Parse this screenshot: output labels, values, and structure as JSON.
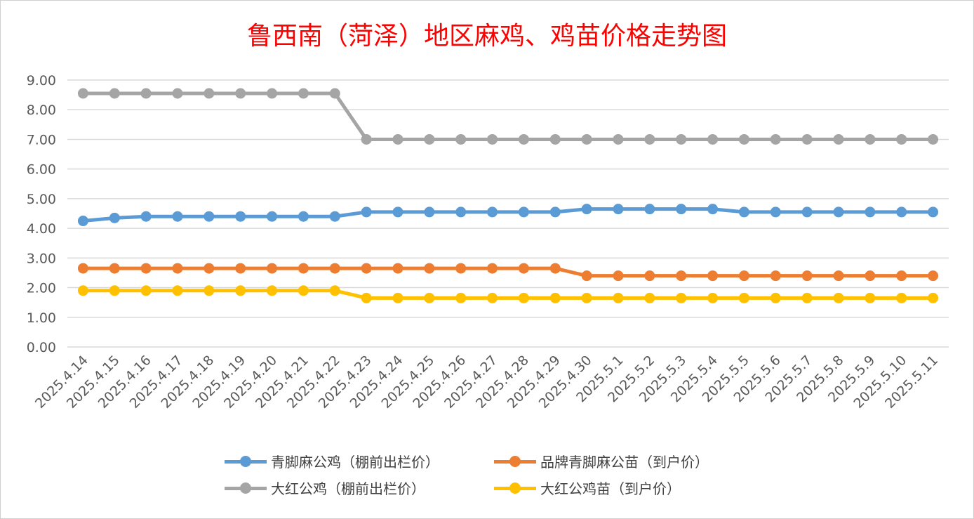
{
  "chart_data": {
    "type": "line",
    "title": "鲁西南（菏泽）地区麻鸡、鸡苗价格走势图",
    "xlabel": "",
    "ylabel": "",
    "ylim": [
      0,
      9
    ],
    "yticks": [
      "0.00",
      "1.00",
      "2.00",
      "3.00",
      "4.00",
      "5.00",
      "6.00",
      "7.00",
      "8.00",
      "9.00"
    ],
    "grid": true,
    "legend_position": "bottom",
    "x": [
      "2025.4.14",
      "2025.4.15",
      "2025.4.16",
      "2025.4.17",
      "2025.4.18",
      "2025.4.19",
      "2025.4.20",
      "2025.4.21",
      "2025.4.22",
      "2025.4.23",
      "2025.4.24",
      "2025.4.25",
      "2025.4.26",
      "2025.4.27",
      "2025.4.28",
      "2025.4.29",
      "2025.4.30",
      "2025.5.1",
      "2025.5.2",
      "2025.5.3",
      "2025.5.4",
      "2025.5.5",
      "2025.5.6",
      "2025.5.7",
      "2025.5.8",
      "2025.5.9",
      "2025.5.10",
      "2025.5.11"
    ],
    "series": [
      {
        "name": "青脚麻公鸡（棚前出栏价）",
        "color": "#5b9bd5",
        "values": [
          4.25,
          4.35,
          4.4,
          4.4,
          4.4,
          4.4,
          4.4,
          4.4,
          4.4,
          4.55,
          4.55,
          4.55,
          4.55,
          4.55,
          4.55,
          4.55,
          4.65,
          4.65,
          4.65,
          4.65,
          4.65,
          4.55,
          4.55,
          4.55,
          4.55,
          4.55,
          4.55,
          4.55
        ]
      },
      {
        "name": "品牌青脚麻公苗（到户价）",
        "color": "#ed7d31",
        "values": [
          2.65,
          2.65,
          2.65,
          2.65,
          2.65,
          2.65,
          2.65,
          2.65,
          2.65,
          2.65,
          2.65,
          2.65,
          2.65,
          2.65,
          2.65,
          2.65,
          2.4,
          2.4,
          2.4,
          2.4,
          2.4,
          2.4,
          2.4,
          2.4,
          2.4,
          2.4,
          2.4,
          2.4
        ]
      },
      {
        "name": "大红公鸡（棚前出栏价）",
        "color": "#a5a5a5",
        "values": [
          8.55,
          8.55,
          8.55,
          8.55,
          8.55,
          8.55,
          8.55,
          8.55,
          8.55,
          7,
          7,
          7,
          7,
          7,
          7,
          7,
          7,
          7,
          7,
          7,
          7,
          7,
          7,
          7,
          7,
          7,
          7,
          7
        ]
      },
      {
        "name": "大红公鸡苗（到户价）",
        "color": "#ffc000",
        "values": [
          1.9,
          1.9,
          1.9,
          1.9,
          1.9,
          1.9,
          1.9,
          1.9,
          1.9,
          1.65,
          1.65,
          1.65,
          1.65,
          1.65,
          1.65,
          1.65,
          1.65,
          1.65,
          1.65,
          1.65,
          1.65,
          1.65,
          1.65,
          1.65,
          1.65,
          1.65,
          1.65,
          1.65
        ]
      }
    ]
  }
}
